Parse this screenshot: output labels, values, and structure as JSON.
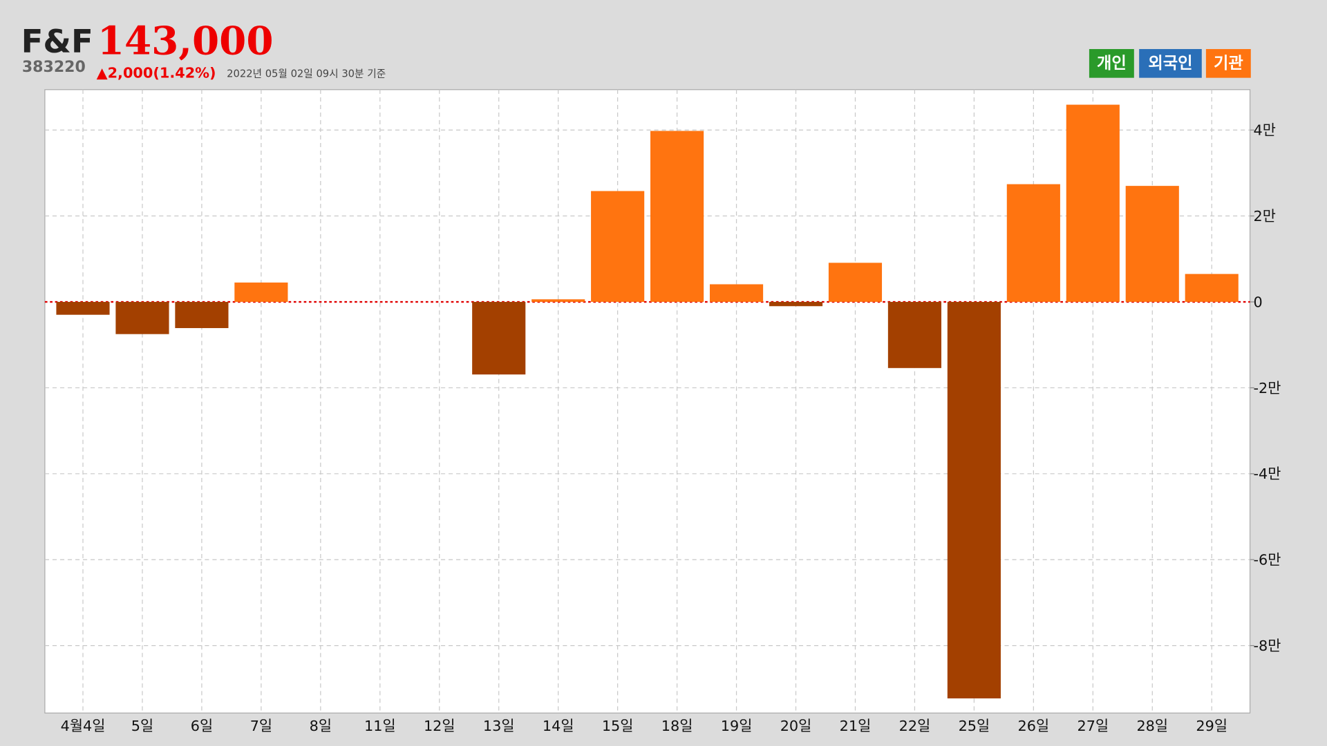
{
  "header": {
    "name": "F&F",
    "price": "143,000",
    "code": "383220",
    "change": "▲2,000(1.42%)",
    "timestamp": "2022년 05월 02일 09시 30분 기준",
    "buttons": [
      {
        "label": "개인",
        "color": "#2a9a2a"
      },
      {
        "label": "외국인",
        "color": "#2a6fb8"
      },
      {
        "label": "기관",
        "color": "#ff7410"
      }
    ]
  },
  "chart_data": {
    "type": "bar",
    "categories": [
      "4월4일",
      "5일",
      "6일",
      "7일",
      "8일",
      "11일",
      "12일",
      "13일",
      "14일",
      "15일",
      "18일",
      "19일",
      "20일",
      "21일",
      "22일",
      "25일",
      "26일",
      "27일",
      "28일",
      "29일"
    ],
    "values": [
      -3000,
      -7500,
      -6100,
      4500,
      0,
      0,
      0,
      -16900,
      600,
      25800,
      39800,
      4100,
      -1000,
      9100,
      -15400,
      -92300,
      27400,
      45900,
      27000,
      6500
    ],
    "color": "#ff7410",
    "negative_color": "#a34000",
    "ylim": [
      -95700,
      49400
    ],
    "yticks": [
      {
        "value": 40000,
        "label": "4만"
      },
      {
        "value": 20000,
        "label": "2만"
      },
      0,
      {
        "value": -20000,
        "label": "-2만"
      },
      {
        "value": -40000,
        "label": "-4만"
      },
      {
        "value": -60000,
        "label": "-6만"
      },
      {
        "value": -80000,
        "label": "-8만"
      }
    ],
    "grid": true,
    "zero_line_color": "#e00000"
  }
}
